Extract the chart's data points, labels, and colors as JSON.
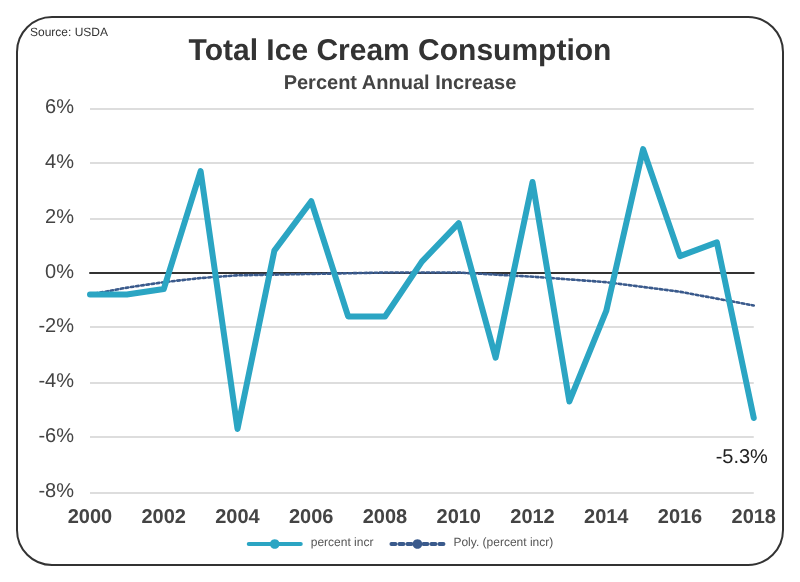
{
  "chart_data": {
    "type": "line",
    "title": "Total Ice Cream Consumption",
    "subtitle": "Percent Annual Increase",
    "x": [
      2000,
      2001,
      2002,
      2003,
      2004,
      2005,
      2006,
      2007,
      2008,
      2009,
      2010,
      2011,
      2012,
      2013,
      2014,
      2015,
      2016,
      2017,
      2018
    ],
    "series": [
      {
        "name": "percent incr",
        "color": "#2ba5c3",
        "line_style": "solid",
        "values": [
          -0.8,
          -0.8,
          -0.6,
          3.7,
          -5.7,
          0.8,
          2.6,
          -1.6,
          -1.6,
          0.4,
          1.8,
          -3.1,
          3.3,
          -4.7,
          -1.4,
          4.5,
          0.6,
          1.1,
          -5.3
        ]
      },
      {
        "name": "Poly. (percent incr)",
        "color": "#3a5a8c",
        "line_style": "dotted",
        "x": [
          2000,
          2001,
          2002,
          2003,
          2004,
          2006,
          2008,
          2010,
          2012,
          2014,
          2016,
          2017,
          2018
        ],
        "values": [
          -0.8,
          -0.55,
          -0.35,
          -0.2,
          -0.1,
          -0.05,
          0,
          0,
          -0.15,
          -0.35,
          -0.7,
          -0.95,
          -1.2
        ]
      }
    ],
    "xlim": [
      2000,
      2018
    ],
    "xticks": [
      2000,
      2002,
      2004,
      2006,
      2008,
      2010,
      2012,
      2014,
      2016,
      2018
    ],
    "ylim": [
      -8,
      6
    ],
    "yticks": [
      {
        "value": -8,
        "label": "-8%"
      },
      {
        "value": -6,
        "label": "-6%"
      },
      {
        "value": -4,
        "label": "-4%"
      },
      {
        "value": -2,
        "label": "-2%"
      },
      {
        "value": 0,
        "label": "0%"
      },
      {
        "value": 2,
        "label": "2%"
      },
      {
        "value": 4,
        "label": "4%"
      },
      {
        "value": 6,
        "label": "6%"
      }
    ],
    "grid": "y",
    "legend": "bottom",
    "marker": "none",
    "annotations": [
      "Source: USDA",
      {
        "text": "-5.3%",
        "x": 2018,
        "y": -5.3
      }
    ]
  }
}
